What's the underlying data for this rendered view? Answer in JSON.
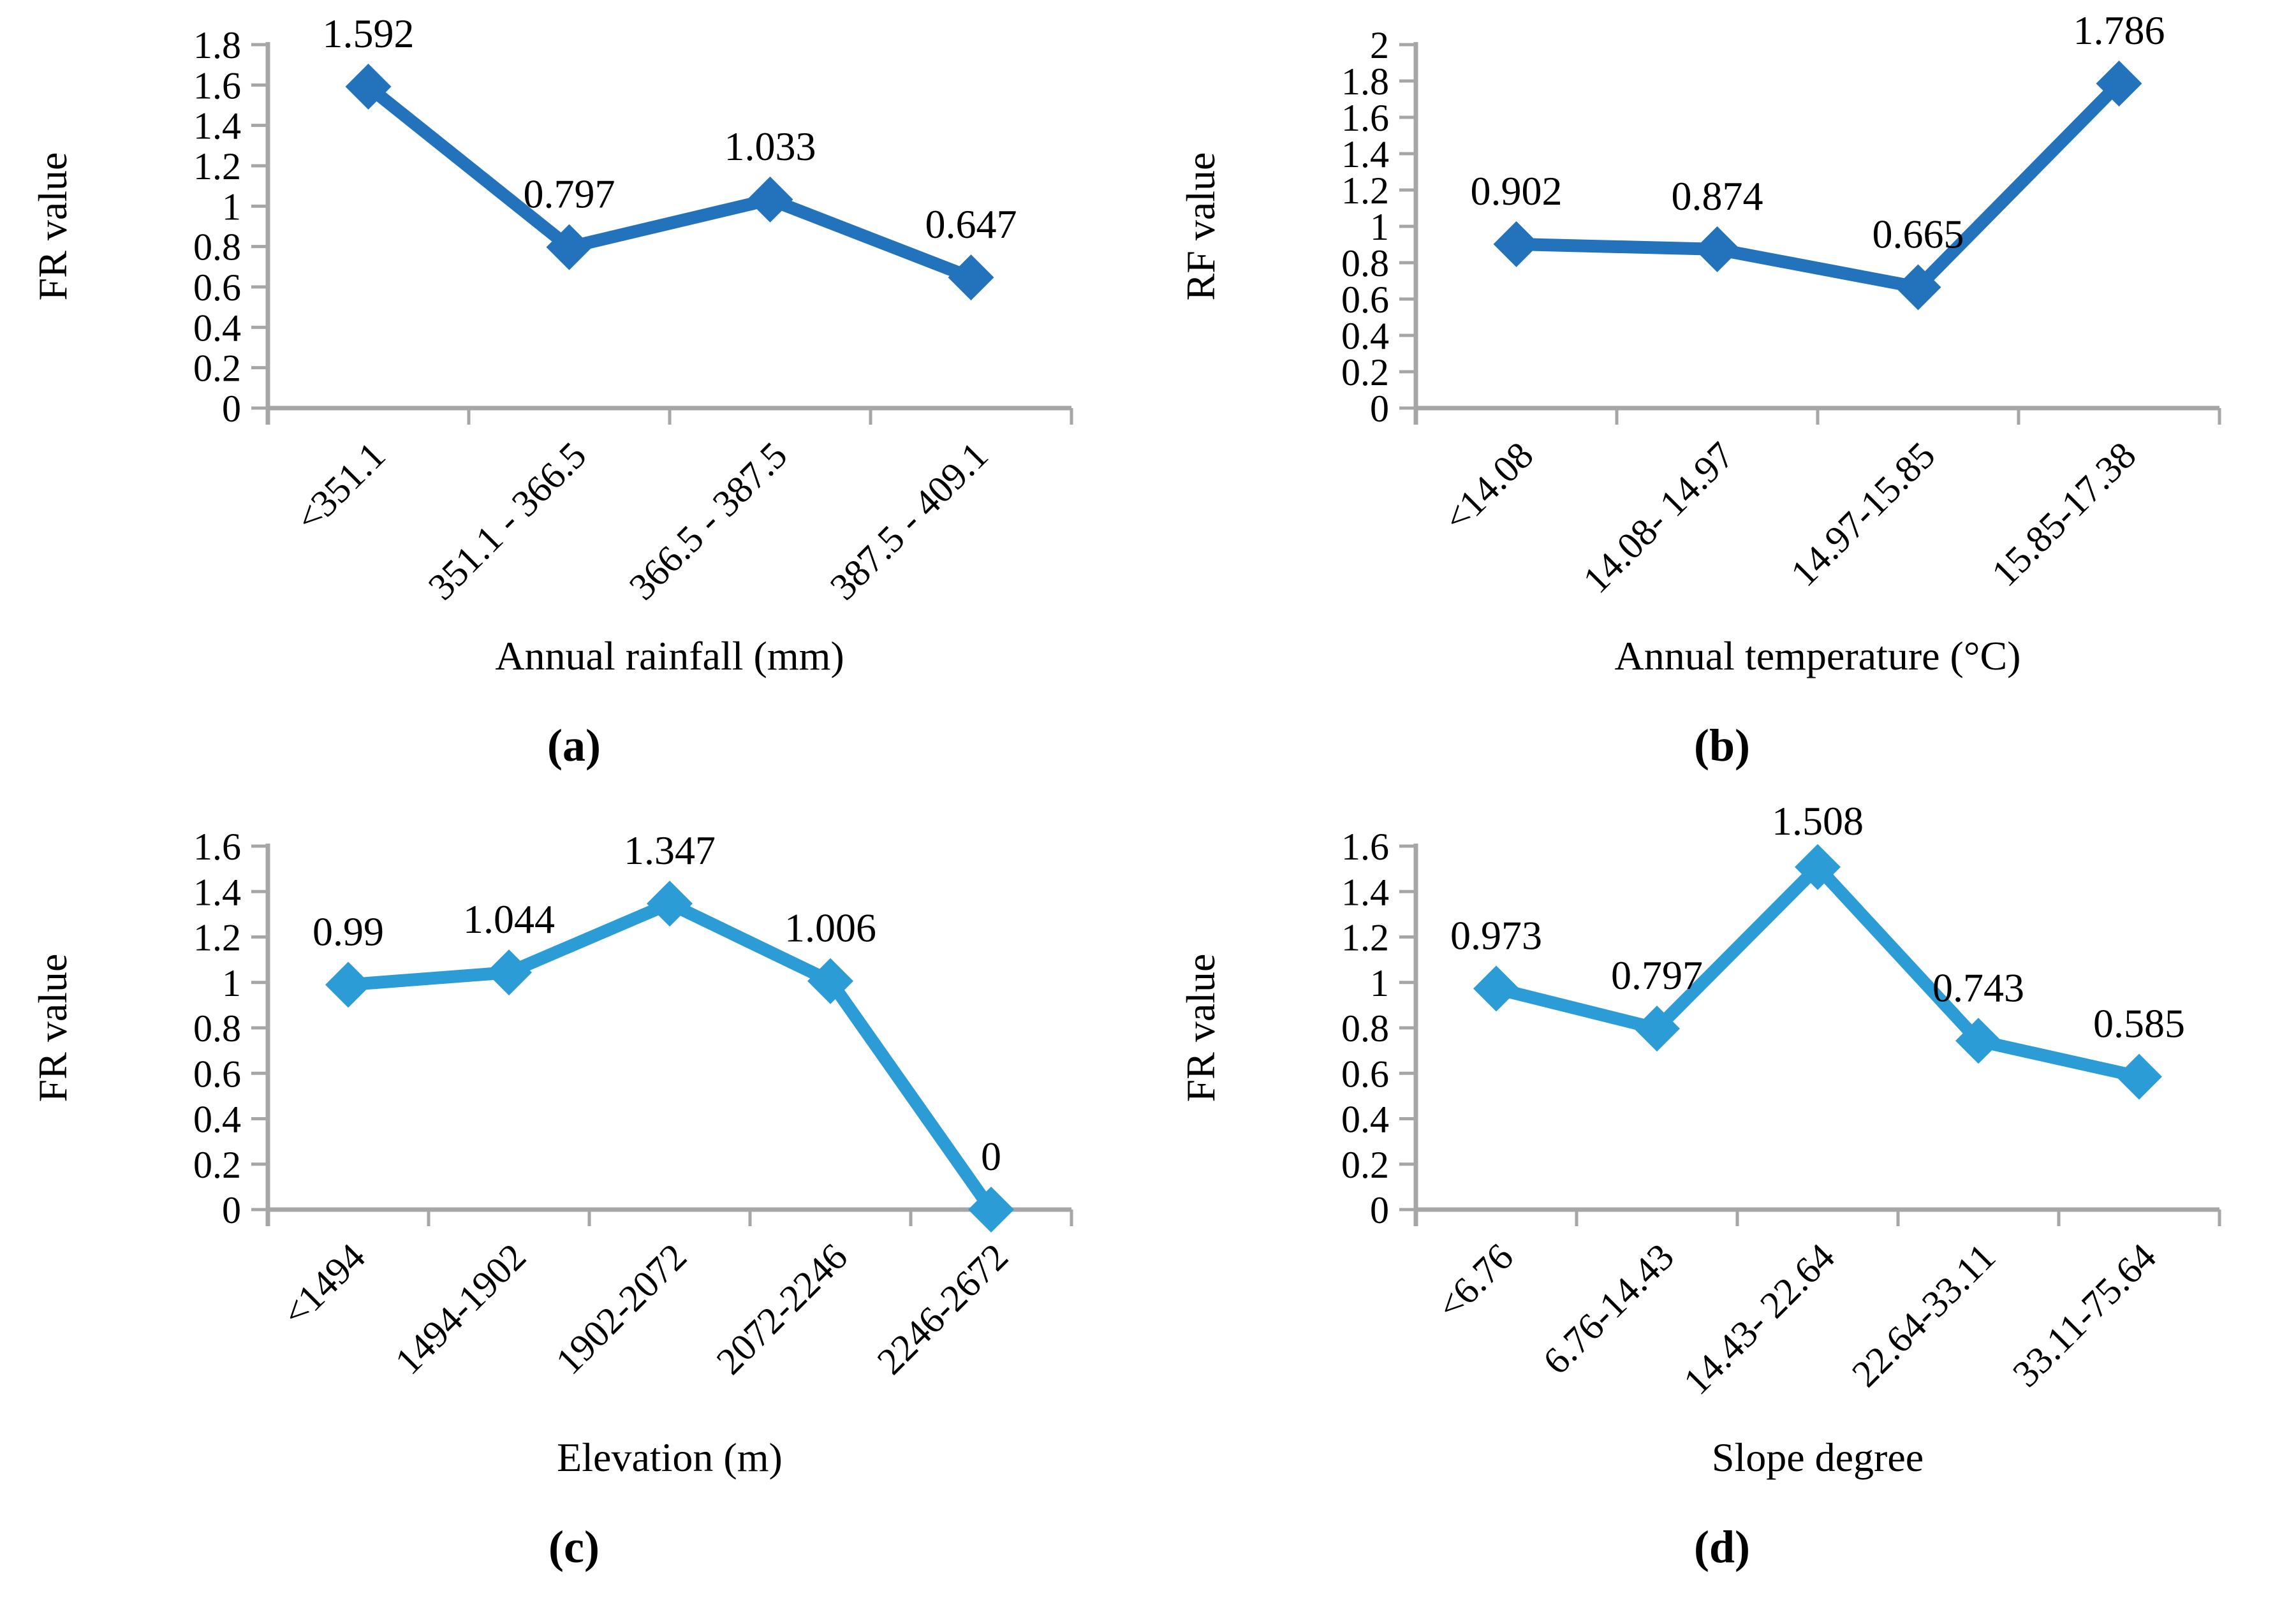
{
  "figure": {
    "background": "#FFFFFF",
    "axis_color": "#A6A6A6",
    "text_color": "#000000",
    "panel_captions": [
      "(a)",
      "(b)",
      "(c)",
      "(d)"
    ]
  },
  "chart_data": [
    {
      "type": "line",
      "title": "",
      "xlabel": "Annual rainfall (mm)",
      "ylabel": "FR value",
      "categories": [
        "<351.1",
        "351.1 - 366.5",
        "366.5 - 387.5",
        "387.5 - 409.1"
      ],
      "values": [
        1.592,
        0.797,
        1.033,
        0.647
      ],
      "point_labels": [
        "1.592",
        "0.797",
        "1.033",
        "0.647"
      ],
      "ylim": [
        0,
        1.8
      ],
      "ytick_step": 0.2,
      "line_color": "#2272BC",
      "marker": "diamond",
      "grid": false,
      "legend": "none",
      "caption": "(a)"
    },
    {
      "type": "line",
      "title": "",
      "xlabel": "Annual temperature (°C)",
      "ylabel": "RF value",
      "categories": [
        "<14.08",
        "14.08- 14.97",
        "14.97-15.85",
        "15.85-17.38"
      ],
      "values": [
        0.902,
        0.874,
        0.665,
        1.786
      ],
      "point_labels": [
        "0.902",
        "0.874",
        "0.665",
        "1.786"
      ],
      "ylim": [
        0,
        2
      ],
      "ytick_step": 0.2,
      "line_color": "#2272BC",
      "marker": "diamond",
      "grid": false,
      "legend": "none",
      "caption": "(b)"
    },
    {
      "type": "line",
      "title": "",
      "xlabel": "Elevation (m)",
      "ylabel": "FR value",
      "categories": [
        "<1494",
        "1494-1902",
        "1902-2072",
        "2072-2246",
        "2246-2672"
      ],
      "values": [
        0.99,
        1.044,
        1.347,
        1.006,
        0
      ],
      "point_labels": [
        "0.99",
        "1.044",
        "1.347",
        "1.006",
        "0"
      ],
      "ylim": [
        0,
        1.6
      ],
      "ytick_step": 0.2,
      "line_color": "#2B9CD6",
      "marker": "diamond",
      "grid": false,
      "legend": "none",
      "caption": "(c)"
    },
    {
      "type": "line",
      "title": "",
      "xlabel": "Slope degree",
      "ylabel": "FR value",
      "categories": [
        "<6.76",
        "6.76-14.43",
        "14.43- 22.64",
        "22.64-33.11",
        "33.11-75.64"
      ],
      "values": [
        0.973,
        0.797,
        1.508,
        0.743,
        0.585
      ],
      "point_labels": [
        "0.973",
        "0.797",
        "1.508",
        "0.743",
        "0.585"
      ],
      "ylim": [
        0,
        1.6
      ],
      "ytick_step": 0.2,
      "line_color": "#2B9CD6",
      "marker": "diamond",
      "grid": false,
      "legend": "none",
      "caption": "(d)"
    }
  ]
}
